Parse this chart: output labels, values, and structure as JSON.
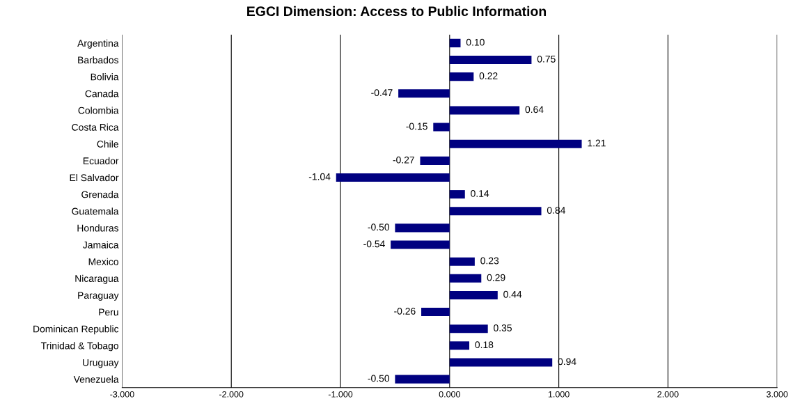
{
  "chart_data": {
    "type": "bar",
    "orientation": "horizontal",
    "title": "EGCI Dimension: Access to Public Information",
    "categories": [
      "Argentina",
      "Barbados",
      "Bolivia",
      "Canada",
      "Colombia",
      "Costa Rica",
      "Chile",
      "Ecuador",
      "El Salvador",
      "Grenada",
      "Guatemala",
      "Honduras",
      "Jamaica",
      "Mexico",
      "Nicaragua",
      "Paraguay",
      "Peru",
      "Dominican Republic",
      "Trinidad & Tobago",
      "Uruguay",
      "Venezuela"
    ],
    "values": [
      0.1,
      0.75,
      0.22,
      -0.47,
      0.64,
      -0.15,
      1.21,
      -0.27,
      -1.04,
      0.14,
      0.84,
      -0.5,
      -0.54,
      0.23,
      0.29,
      0.44,
      -0.26,
      0.35,
      0.18,
      0.94,
      -0.5
    ],
    "value_labels": [
      "0.10",
      "0.75",
      "0.22",
      "-0.47",
      "0.64",
      "-0.15",
      "1.21",
      "-0.27",
      "-1.04",
      "0.14",
      "0.84",
      "-0.50",
      "-0.54",
      "0.23",
      "0.29",
      "0.44",
      "-0.26",
      "0.35",
      "0.18",
      "0.94",
      "-0.50"
    ],
    "color": "#000080",
    "xlim": [
      -3,
      3
    ],
    "xticks": [
      {
        "value": -3,
        "label": "-3.000"
      },
      {
        "value": -2,
        "label": "-2.000"
      },
      {
        "value": -1,
        "label": "-1.000"
      },
      {
        "value": 0,
        "label": "0.000"
      },
      {
        "value": 1,
        "label": "1.000"
      },
      {
        "value": 2,
        "label": "2.000"
      },
      {
        "value": 3,
        "label": "3.000"
      }
    ],
    "grid": "x"
  }
}
